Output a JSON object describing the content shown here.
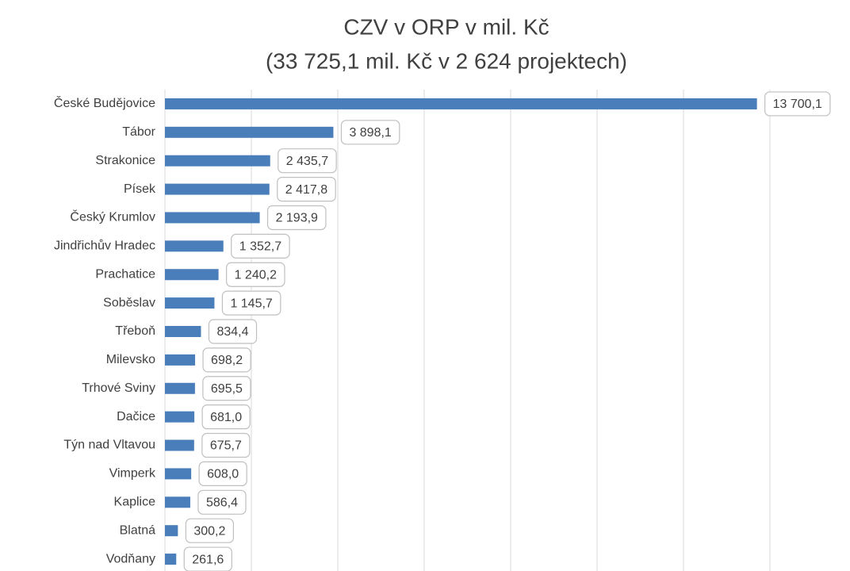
{
  "chart_data": {
    "type": "bar",
    "orientation": "horizontal",
    "title": "CZV v ORP v mil. Kč",
    "subtitle": "(33 725,1 mil. Kč v 2 624 projektech)",
    "categories": [
      "České Budějovice",
      "Tábor",
      "Strakonice",
      "Písek",
      "Český Krumlov",
      "Jindřichův Hradec",
      "Prachatice",
      "Soběslav",
      "Třeboň",
      "Milevsko",
      "Trhové Sviny",
      "Dačice",
      "Týn nad Vltavou",
      "Vimperk",
      "Kaplice",
      "Blatná",
      "Vodňany"
    ],
    "values": [
      13700.1,
      3898.1,
      2435.7,
      2417.8,
      2193.9,
      1352.7,
      1240.2,
      1145.7,
      834.4,
      698.2,
      695.5,
      681.0,
      675.7,
      608.0,
      586.4,
      300.2,
      261.6
    ],
    "value_labels": [
      "13 700,1",
      "3 898,1",
      "2 435,7",
      "2 417,8",
      "2 193,9",
      "1 352,7",
      "1 240,2",
      "1 145,7",
      "834,4",
      "698,2",
      "695,5",
      "681,0",
      "675,7",
      "608,0",
      "586,4",
      "300,2",
      "261,6"
    ],
    "color": "#4a7ebb",
    "xlim": [
      0,
      14000
    ],
    "xticks": [
      0,
      2000,
      4000,
      6000,
      8000,
      10000,
      12000,
      14000
    ],
    "grid": true
  }
}
